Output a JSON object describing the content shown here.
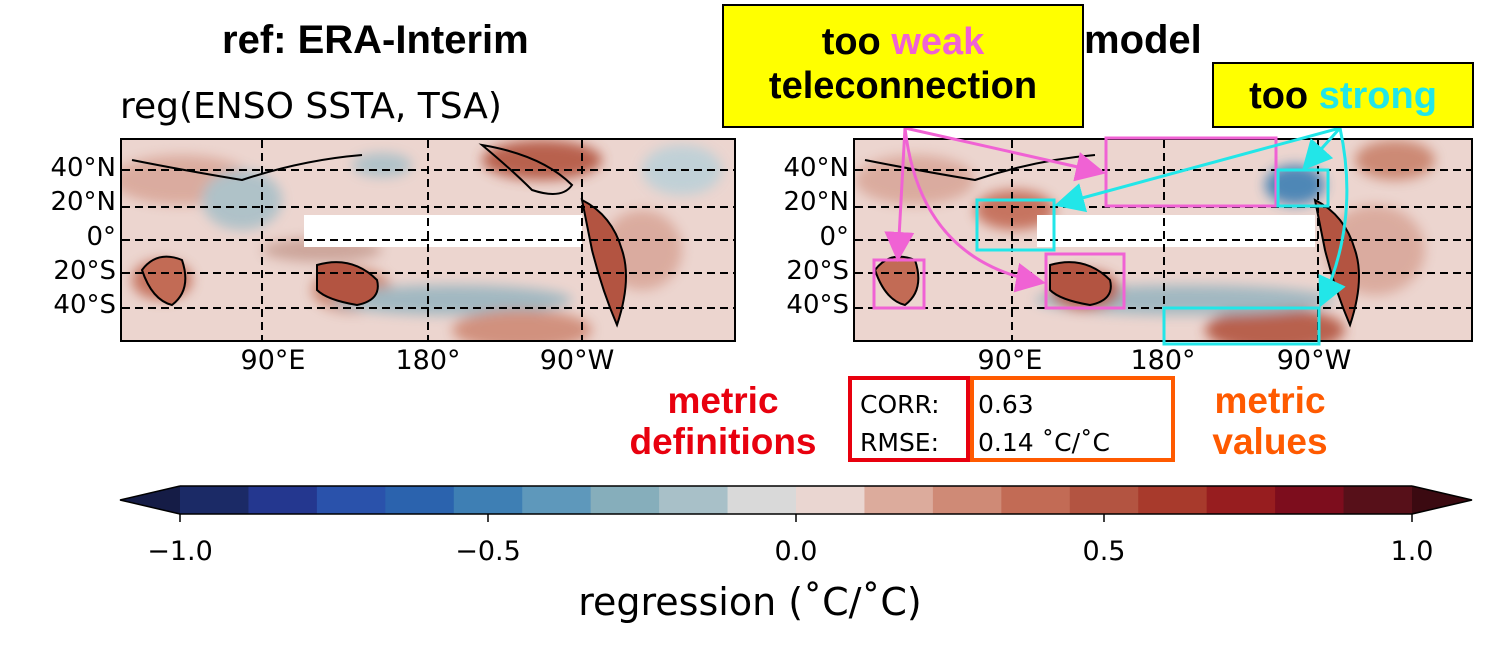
{
  "titles": {
    "ref_title": "ref: ERA-Interim",
    "model_title": "model",
    "subtitle": "reg(ENSO SSTA, TSA)"
  },
  "left_map": {
    "lat_labels": [
      "40°N",
      "20°N",
      "0°",
      "20°S",
      "40°S"
    ],
    "lon_labels": [
      "90°E",
      "180°",
      "90°W"
    ]
  },
  "right_map": {
    "lat_labels": [
      "40°N",
      "20°N",
      "0°",
      "20°S",
      "40°S"
    ],
    "lon_labels": [
      "90°E",
      "180°",
      "90°W"
    ]
  },
  "callouts": {
    "weak": {
      "prefix": "too ",
      "highlight": "weak",
      "line2": "teleconnection"
    },
    "strong": {
      "prefix": "too ",
      "highlight": "strong"
    }
  },
  "metrics": {
    "definitions_label": "metric definitions",
    "values_label": "metric values",
    "definitions": [
      "CORR:",
      "RMSE:"
    ],
    "values": [
      "0.63",
      "0.14 ˚C/˚C"
    ]
  },
  "colorbar": {
    "ticks": [
      "−1.0",
      "−0.5",
      "0.0",
      "0.5",
      "1.0"
    ],
    "label": "regression (˚C/˚C)",
    "range": [
      -1.0,
      1.0
    ],
    "colors": [
      "#151c46",
      "#1b2a66",
      "#24378f",
      "#2a52ab",
      "#2b63ae",
      "#3e7fb4",
      "#5e98bb",
      "#86aebb",
      "#a8c0c8",
      "#d9d9d9",
      "#ead6d1",
      "#dcab9c",
      "#cf8a76",
      "#c26b55",
      "#b35441",
      "#a83a2c",
      "#971d1f",
      "#7d0d1d",
      "#571019",
      "#3b0a11"
    ]
  },
  "colors": {
    "pink": "#f062d4",
    "cyan": "#22e6e8",
    "red": "#e8000e",
    "orange": "#ff5a00",
    "callout_bg": "#ffff00"
  }
}
